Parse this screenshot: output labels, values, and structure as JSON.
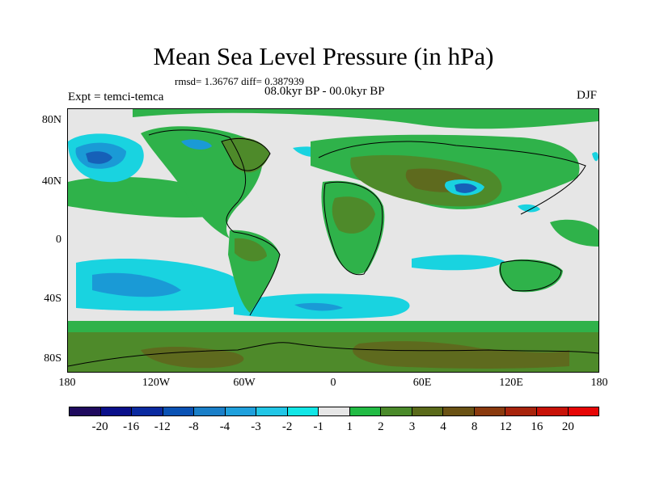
{
  "title": "Mean Sea Level Pressure (in hPa)",
  "stats": "rmsd= 1.36767 diff= 0.387939",
  "experiment": "Expt = temci-temca",
  "period": "08.0kyr BP - 00.0kyr BP",
  "season": "DJF",
  "y_ticks": [
    "80N",
    "40N",
    "0",
    "40S",
    "80S"
  ],
  "x_ticks": [
    "180",
    "120W",
    "60W",
    "0",
    "60E",
    "120E",
    "180"
  ],
  "colorbar": {
    "colors": [
      "#1f0a5e",
      "#0a0f8a",
      "#0a2aa0",
      "#0a52b4",
      "#1a7fc8",
      "#1fa0dc",
      "#22c6e6",
      "#12e6e6",
      "#e6e6e6",
      "#22bb44",
      "#4a8a2a",
      "#5a6a1a",
      "#6a5214",
      "#8a3a0e",
      "#a8240c",
      "#c81208",
      "#e60606"
    ],
    "labels": [
      "-20",
      "-16",
      "-12",
      "-8",
      "-4",
      "-3",
      "-2",
      "-1",
      "1",
      "2",
      "3",
      "4",
      "8",
      "12",
      "16",
      "20"
    ]
  },
  "map_colors": {
    "neutral": "#e6e6e6",
    "green_light": "#2fb24a",
    "green_dark": "#4e8a2a",
    "olive": "#5e6a1e",
    "brown": "#6e4e14",
    "cyan": "#19d3e0",
    "blue_mid": "#1a9ad6",
    "blue_dark": "#1660b8",
    "coast": "#000000"
  }
}
